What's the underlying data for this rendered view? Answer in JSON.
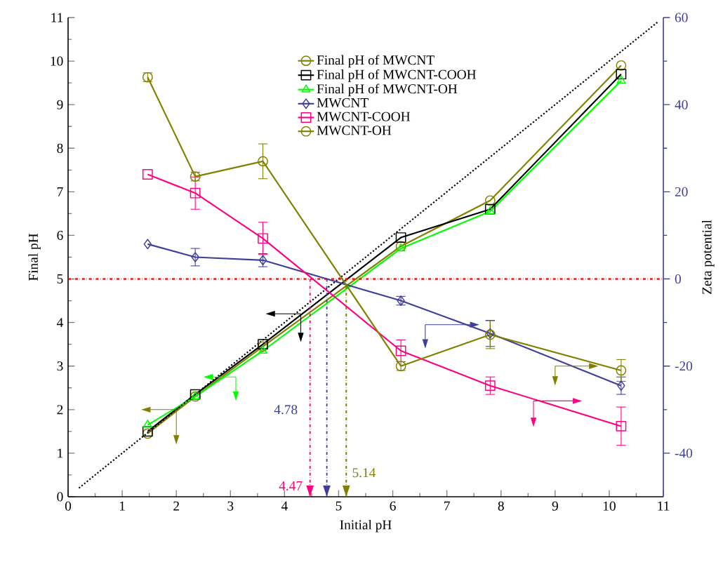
{
  "chart_data": {
    "type": "line",
    "xlabel": "Initial pH",
    "ylabel": "Final pH",
    "y2label": "Zeta potential",
    "x": [
      1.47,
      2.35,
      3.6,
      6.15,
      7.8,
      10.22
    ],
    "series": [
      {
        "name": "Final pH of MWCNT",
        "color": "#808000",
        "marker": "circle",
        "values": [
          1.45,
          2.3,
          3.45,
          5.75,
          6.8,
          9.9
        ]
      },
      {
        "name": "Final pH of MWCNT-COOH",
        "color": "#000000",
        "marker": "square",
        "values": [
          1.5,
          2.35,
          3.5,
          5.95,
          6.6,
          9.7
        ]
      },
      {
        "name": "Final pH of MWCNT-OH",
        "color": "#00ff00",
        "marker": "triangle",
        "values": [
          1.65,
          2.3,
          3.35,
          5.7,
          6.55,
          9.55
        ]
      },
      {
        "name": "MWCNT",
        "color": "#3f3f9a",
        "marker": "diamond",
        "axis": "y2",
        "values": [
          8,
          5,
          4.3,
          -5,
          -12.5,
          -24.5
        ],
        "errors": [
          null,
          2,
          1.5,
          1,
          3,
          2
        ]
      },
      {
        "name": "MWCNT-COOH",
        "color": "#ff0080",
        "marker": "square",
        "axis": "y2",
        "values": [
          24,
          19.7,
          9.3,
          -16.5,
          -24.5,
          -33.8
        ],
        "errors": [
          null,
          3.7,
          3.7,
          2.5,
          2,
          4.4
        ]
      },
      {
        "name": "MWCNT-OH",
        "color": "#808000",
        "marker": "circle",
        "axis": "y2",
        "values": [
          46.3,
          23.5,
          27,
          -20,
          -12.8,
          -21
        ],
        "errors": [
          1,
          1,
          4,
          1,
          3.2,
          2.5
        ]
      },
      {
        "type": "line",
        "color": "#000000",
        "line_style": "dotted",
        "marker": "none",
        "x": [
          0.2,
          10.9
        ],
        "values": [
          0.2,
          10.9
        ]
      }
    ],
    "xlim": [
      0,
      11
    ],
    "xticks": [
      0,
      1,
      2,
      3,
      4,
      5,
      6,
      7,
      8,
      9,
      10,
      11
    ],
    "ylim": [
      0,
      11
    ],
    "yticks": [
      0,
      1,
      2,
      3,
      4,
      5,
      6,
      7,
      8,
      9,
      10,
      11
    ],
    "y2lim": [
      -50,
      60
    ],
    "y2ticks": [
      -40,
      -20,
      0,
      20,
      40,
      60
    ],
    "ref_lines": [
      {
        "axis": "y2",
        "value": 0,
        "color": "#ff0000",
        "line_style": "dashdot"
      },
      {
        "axis": "x",
        "value": 4.47,
        "label": "4.47",
        "color": "#ff0080",
        "line_style": "dashdot"
      },
      {
        "axis": "x",
        "value": 4.78,
        "label": "4.78",
        "color": "#3f3f9a",
        "line_style": "dashdot"
      },
      {
        "axis": "x",
        "value": 5.14,
        "label": "5.14",
        "color": "#808000",
        "line_style": "dashdot"
      }
    ],
    "legend": "top"
  }
}
